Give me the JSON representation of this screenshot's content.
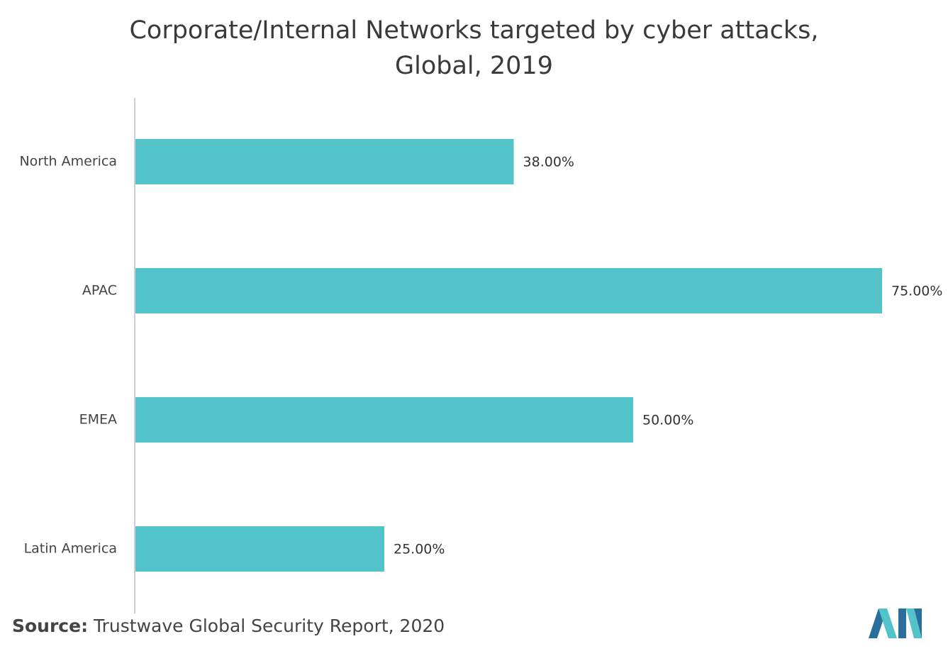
{
  "title": {
    "line1": "Corporate/Internal Networks targeted by cyber attacks,",
    "line2": "Global, 2019"
  },
  "source": {
    "label": "Source:",
    "text": " Trustwave Global Security Report, 2020"
  },
  "logo_icon": "mordor-intelligence-logo-icon",
  "colors": {
    "bar": "#52c4c9",
    "axis": "#cfcfcf",
    "logo_dark": "#2a6f9b",
    "logo_light": "#52c4c9"
  },
  "chart_data": {
    "type": "bar",
    "orientation": "horizontal",
    "categories": [
      "North America",
      "APAC",
      "EMEA",
      "Latin America"
    ],
    "values": [
      38,
      75,
      50,
      25
    ],
    "value_labels": [
      "38.00%",
      "75.00%",
      "50.00%",
      "25.00%"
    ],
    "unit": "%",
    "xlim": [
      0,
      75
    ],
    "grid": false,
    "legend": "none"
  }
}
